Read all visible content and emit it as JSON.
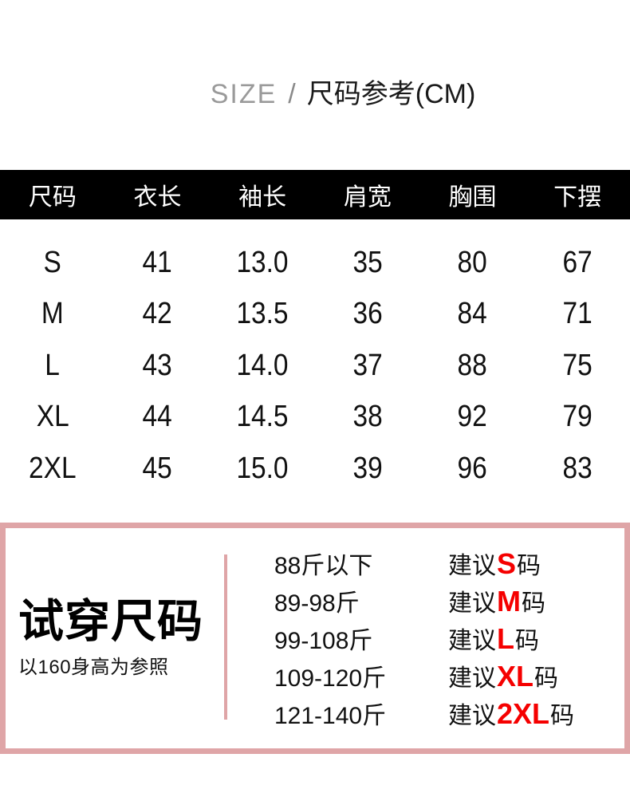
{
  "title": {
    "en": "SIZE",
    "separator": "/",
    "zh": "尺码参考(CM)"
  },
  "size_table": {
    "headers": [
      "尺码",
      "衣长",
      "袖长",
      "肩宽",
      "胸围",
      "下摆"
    ],
    "rows": [
      {
        "size": "S",
        "values": [
          "41",
          "13.0",
          "35",
          "80",
          "67"
        ]
      },
      {
        "size": "M",
        "values": [
          "42",
          "13.5",
          "36",
          "84",
          "71"
        ]
      },
      {
        "size": "L",
        "values": [
          "43",
          "14.0",
          "37",
          "88",
          "75"
        ]
      },
      {
        "size": "XL",
        "values": [
          "44",
          "14.5",
          "38",
          "92",
          "79"
        ]
      },
      {
        "size": "2XL",
        "values": [
          "45",
          "15.0",
          "39",
          "96",
          "83"
        ]
      }
    ],
    "unit": "CM"
  },
  "fit_guide": {
    "title": "试穿尺码",
    "subtitle": "以160身高为参照",
    "rows": [
      {
        "weight": "88斤以下",
        "advice_prefix": "建议",
        "size": "S",
        "advice_suffix": "码"
      },
      {
        "weight": "89-98斤",
        "advice_prefix": "建议",
        "size": "M",
        "advice_suffix": "码"
      },
      {
        "weight": "99-108斤",
        "advice_prefix": "建议",
        "size": "L",
        "advice_suffix": "码"
      },
      {
        "weight": "109-120斤",
        "advice_prefix": "建议",
        "size": "XL",
        "advice_suffix": "码"
      },
      {
        "weight": "121-140斤",
        "advice_prefix": "建议",
        "size": "2XL",
        "advice_suffix": "码"
      }
    ]
  },
  "colors": {
    "accent_pink": "#dfa5a7",
    "highlight_red": "#f50000",
    "header_bg": "#000000",
    "title_gray": "#9a9a9a",
    "ink": "#111111"
  }
}
